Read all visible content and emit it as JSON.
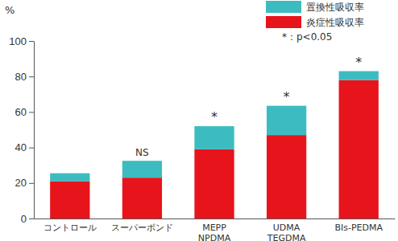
{
  "chart_data": {
    "type": "bar",
    "stacked": true,
    "y_label": "%",
    "categories": [
      "コントロール",
      "スーパーボンド",
      "MEPP\nNPDMA",
      "UDMA\nTEGDMA",
      "BIs-PEDMA"
    ],
    "series": [
      {
        "name": "炎症性吸収率",
        "color": "#e8141b",
        "values": [
          21,
          23,
          39,
          47,
          78
        ]
      },
      {
        "name": "置換性吸収率",
        "color": "#3cbcc0",
        "values": [
          4.5,
          9.5,
          13,
          16.5,
          5
        ]
      }
    ],
    "annotations": [
      null,
      "NS",
      "*",
      "*",
      "*"
    ],
    "note": "*：p<0.05",
    "ylim": [
      0,
      100
    ],
    "yticks": [
      0,
      20,
      40,
      60,
      80,
      100
    ],
    "grid": false,
    "legend": "upper right"
  }
}
